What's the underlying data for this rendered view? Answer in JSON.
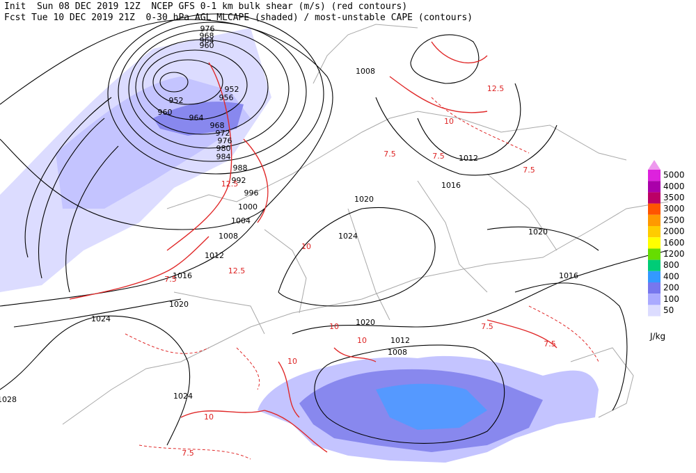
{
  "header": {
    "lines": [
      "Init  Sun 08 DEC 2019 12Z  NCEP GFS 0-1 km bulk shear (m/s) (red contours)",
      "Fcst Tue 10 DEC 2019 21Z  0-30 hPa AGL MLCAPE (shaded) / most-unstable CAPE (contours)"
    ]
  },
  "legend": {
    "unit": "J/kg",
    "items": [
      {
        "label": "5000",
        "color": "#dd22dd"
      },
      {
        "label": "4000",
        "color": "#aa00aa"
      },
      {
        "label": "3500",
        "color": "#bb0066"
      },
      {
        "label": "3000",
        "color": "#ff5500"
      },
      {
        "label": "2500",
        "color": "#ff9900"
      },
      {
        "label": "2000",
        "color": "#ffcc00"
      },
      {
        "label": "1600",
        "color": "#ffff00"
      },
      {
        "label": "1200",
        "color": "#66dd00"
      },
      {
        "label": "800",
        "color": "#00cc77"
      },
      {
        "label": "400",
        "color": "#3399ff"
      },
      {
        "label": "200",
        "color": "#7777ee"
      },
      {
        "label": "100",
        "color": "#aaaaff"
      },
      {
        "label": "50",
        "color": "#dcdcff"
      }
    ],
    "top_color": "#ee99ee"
  },
  "isobars": {
    "labels": [
      "976",
      "968",
      "964",
      "960",
      "952",
      "952",
      "956",
      "960",
      "964",
      "968",
      "972",
      "976",
      "980",
      "984",
      "988",
      "992",
      "996",
      "1000",
      "1004",
      "1008",
      "1012",
      "1016",
      "1020",
      "1024",
      "1028",
      "1024",
      "1020",
      "1024",
      "1020",
      "1016",
      "1020",
      "1012",
      "1008",
      "1012",
      "1016",
      "1008"
    ]
  },
  "shear": {
    "labels": [
      "7.5",
      "10",
      "12.5",
      "7.5",
      "10",
      "7.5",
      "12.5",
      "10",
      "7.5",
      "10",
      "7.5",
      "12.5",
      "10",
      "7.5",
      "10",
      "7.5"
    ]
  }
}
